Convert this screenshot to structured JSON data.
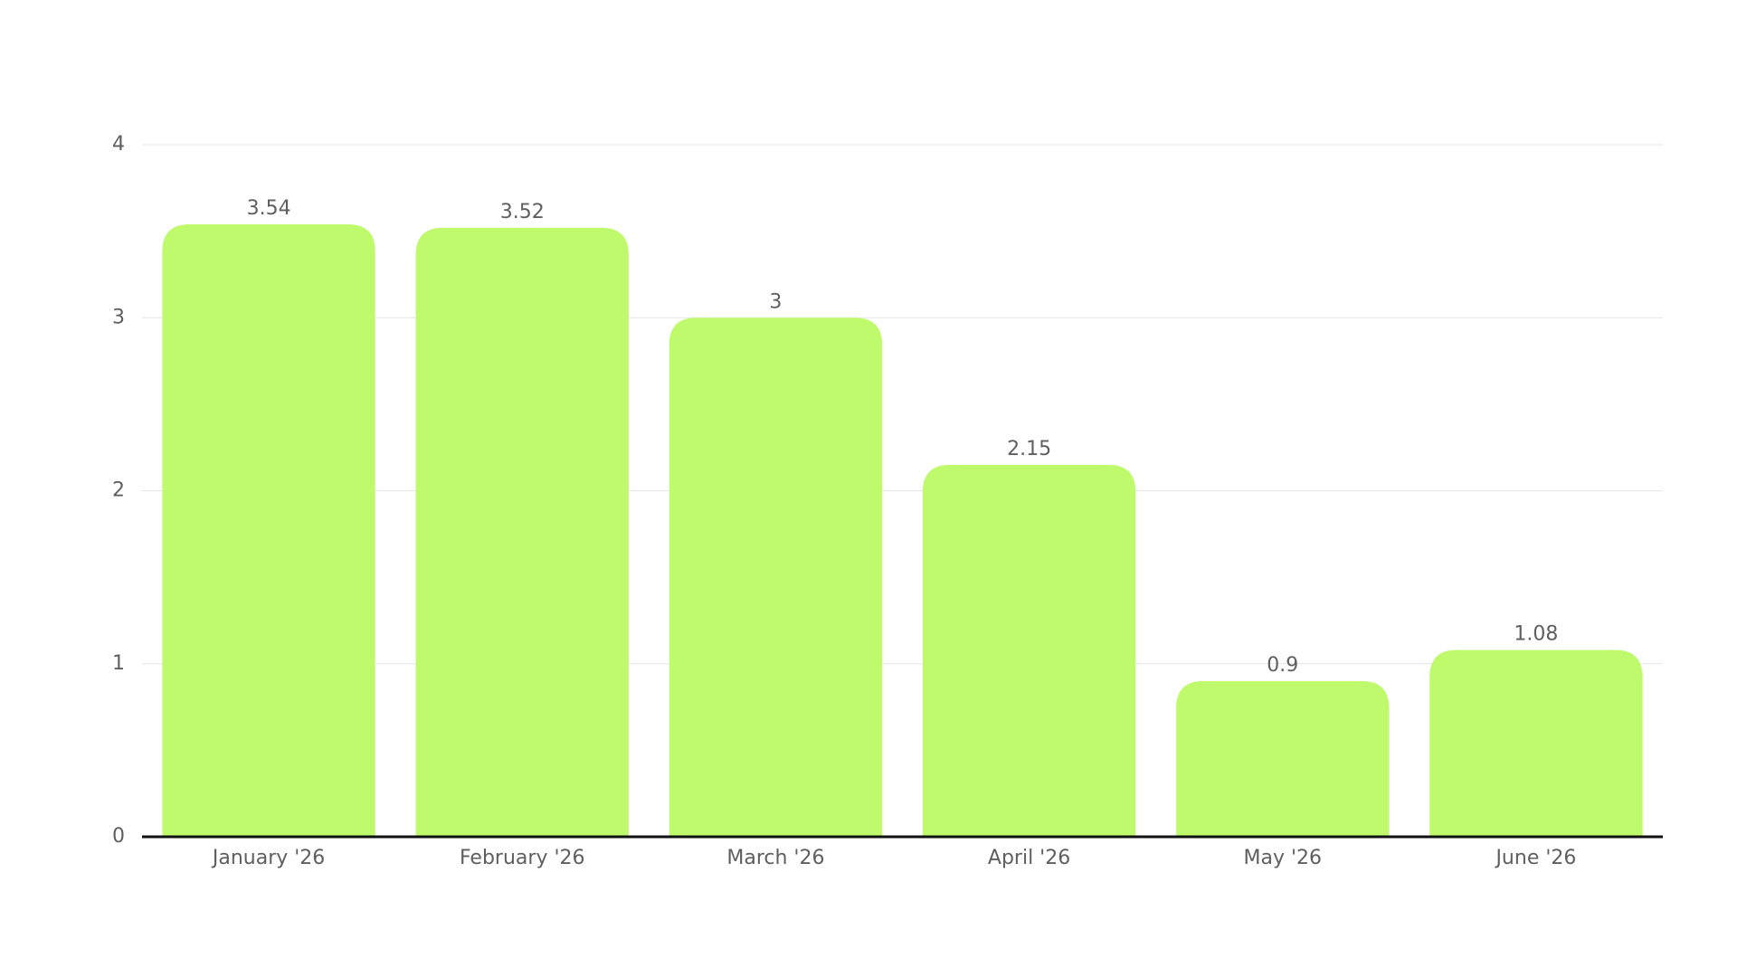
{
  "chart_data": {
    "type": "bar",
    "categories": [
      "January '26",
      "February '26",
      "March '26",
      "April '26",
      "May '26",
      "June '26"
    ],
    "values": [
      3.54,
      3.52,
      3,
      2.15,
      0.9,
      1.08
    ],
    "color": "#befa6b",
    "ylim": [
      0,
      4
    ],
    "yticks": [
      0,
      1,
      2,
      3,
      4
    ],
    "grid": true,
    "data_labels": true
  }
}
